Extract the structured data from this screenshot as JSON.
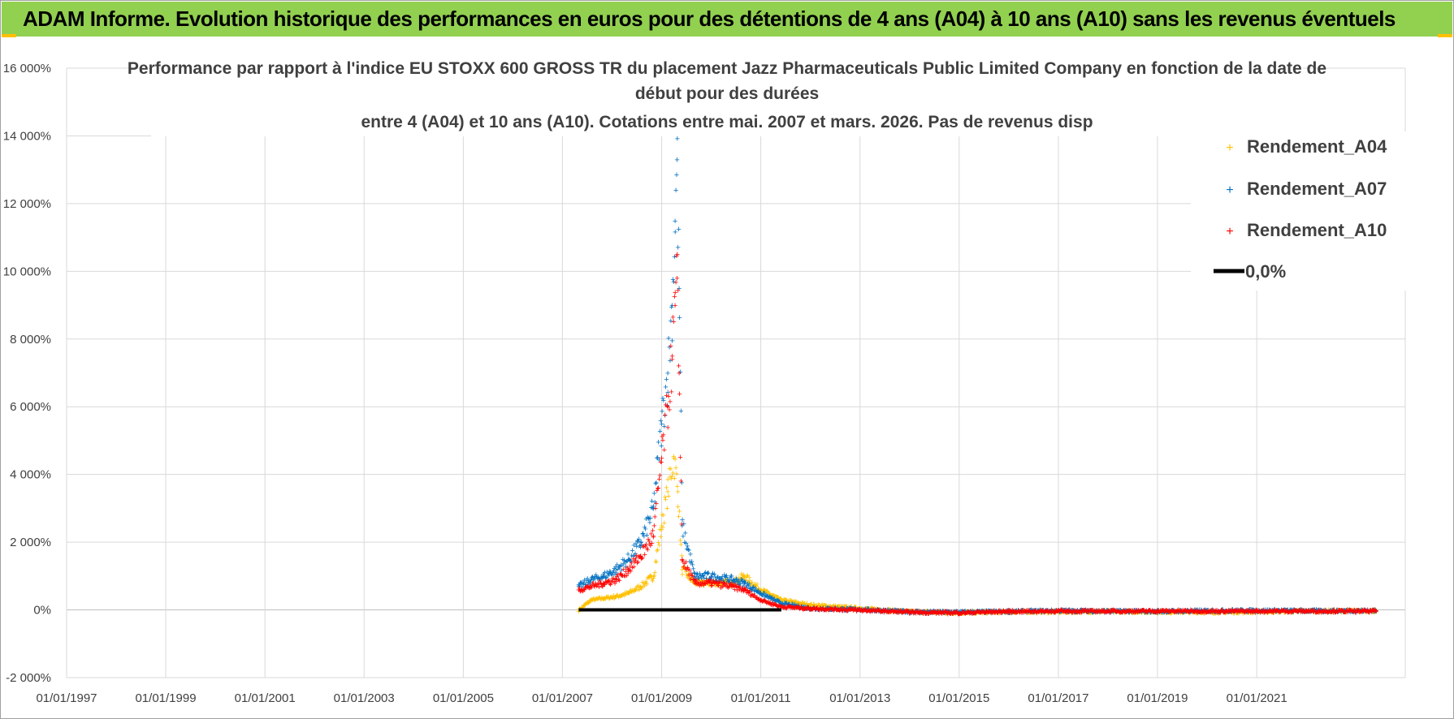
{
  "header": {
    "title": "ADAM Informe. Evolution historique des performances en euros pour des détentions de 4 ans (A04) à 10 ans (A10) sans les revenus éventuels"
  },
  "colors": {
    "banner": "#92d050",
    "a04": "#ffc000",
    "a07": "#0070c0",
    "a10": "#ff0000",
    "zero": "#000000",
    "grid": "#d9d9d9"
  },
  "chart_data": {
    "type": "scatter",
    "title_lines": [
      "Performance par rapport à l'indice EU STOXX 600 GROSS TR  du placement Jazz Pharmaceuticals Public Limited Company en fonction de la date de",
      "début pour des durées",
      "entre 4 (A04) et 10 ans (A10). Cotations entre mai. 2007 et mars. 2026. Pas de revenus disp"
    ],
    "x_range": [
      "1997-01-01",
      "2023-12-31"
    ],
    "x_ticks": [
      "01/01/1997",
      "01/01/1999",
      "01/01/2001",
      "01/01/2003",
      "01/01/2005",
      "01/01/2007",
      "01/01/2009",
      "01/01/2011",
      "01/01/2013",
      "01/01/2015",
      "01/01/2017",
      "01/01/2019",
      "01/01/2021"
    ],
    "ylim": [
      -2000,
      16000
    ],
    "y_ticks": [
      {
        "v": 16000,
        "label": "16 000%"
      },
      {
        "v": 14000,
        "label": "14 000%"
      },
      {
        "v": 12000,
        "label": "12 000%"
      },
      {
        "v": 10000,
        "label": "10 000%"
      },
      {
        "v": 8000,
        "label": "8 000%"
      },
      {
        "v": 6000,
        "label": "6 000%"
      },
      {
        "v": 4000,
        "label": "4 000%"
      },
      {
        "v": 2000,
        "label": "2 000%"
      },
      {
        "v": 0,
        "label": "0%"
      },
      {
        "v": -2000,
        "label": "-2 000%"
      }
    ],
    "grid": true,
    "legend_position": "top-right",
    "series": [
      {
        "name": "Rendement_A04",
        "color": "#ffc000",
        "points": [
          [
            "2007-05-01",
            0
          ],
          [
            "2007-08-01",
            300
          ],
          [
            "2007-11-01",
            350
          ],
          [
            "2008-02-01",
            400
          ],
          [
            "2008-05-01",
            500
          ],
          [
            "2008-08-01",
            700
          ],
          [
            "2008-11-01",
            1000
          ],
          [
            "2009-01-01",
            2500
          ],
          [
            "2009-02-15",
            3500
          ],
          [
            "2009-04-01",
            4500
          ],
          [
            "2009-05-01",
            3500
          ],
          [
            "2009-06-01",
            1200
          ],
          [
            "2009-09-01",
            800
          ],
          [
            "2010-01-01",
            800
          ],
          [
            "2010-06-01",
            800
          ],
          [
            "2010-09-01",
            1000
          ],
          [
            "2011-01-01",
            600
          ],
          [
            "2011-06-01",
            300
          ],
          [
            "2012-01-01",
            150
          ],
          [
            "2013-01-01",
            50
          ],
          [
            "2014-01-01",
            -50
          ],
          [
            "2015-01-01",
            -80
          ],
          [
            "2016-01-01",
            -50
          ],
          [
            "2017-01-01",
            -50
          ],
          [
            "2018-01-01",
            -40
          ],
          [
            "2019-01-01",
            -50
          ],
          [
            "2020-01-01",
            -60
          ],
          [
            "2021-01-01",
            -50
          ],
          [
            "2022-01-01",
            -30
          ],
          [
            "2023-06-01",
            -20
          ]
        ]
      },
      {
        "name": "Rendement_A07",
        "color": "#0070c0",
        "points": [
          [
            "2007-05-01",
            700
          ],
          [
            "2007-08-01",
            900
          ],
          [
            "2007-11-01",
            1000
          ],
          [
            "2008-02-01",
            1200
          ],
          [
            "2008-05-01",
            1500
          ],
          [
            "2008-08-01",
            2000
          ],
          [
            "2008-11-01",
            3000
          ],
          [
            "2009-01-01",
            5500
          ],
          [
            "2009-02-15",
            7000
          ],
          [
            "2009-03-20",
            9000
          ],
          [
            "2009-04-10",
            11500
          ],
          [
            "2009-04-25",
            13300
          ],
          [
            "2009-05-10",
            9500
          ],
          [
            "2009-06-01",
            2500
          ],
          [
            "2009-09-01",
            1000
          ],
          [
            "2010-01-01",
            1000
          ],
          [
            "2010-06-01",
            900
          ],
          [
            "2010-09-01",
            800
          ],
          [
            "2011-01-01",
            500
          ],
          [
            "2011-06-01",
            200
          ],
          [
            "2012-01-01",
            50
          ],
          [
            "2013-01-01",
            20
          ],
          [
            "2014-01-01",
            -50
          ],
          [
            "2015-01-01",
            -60
          ],
          [
            "2016-01-01",
            -40
          ],
          [
            "2017-01-01",
            -20
          ],
          [
            "2018-01-01",
            -30
          ],
          [
            "2019-01-01",
            -40
          ],
          [
            "2020-01-01",
            -20
          ],
          [
            "2021-01-01",
            -10
          ],
          [
            "2022-01-01",
            -20
          ],
          [
            "2023-06-01",
            -20
          ]
        ]
      },
      {
        "name": "Rendement_A10",
        "color": "#ff0000",
        "points": [
          [
            "2007-05-01",
            600
          ],
          [
            "2007-08-01",
            700
          ],
          [
            "2007-11-01",
            800
          ],
          [
            "2008-02-01",
            900
          ],
          [
            "2008-05-01",
            1200
          ],
          [
            "2008-08-01",
            1600
          ],
          [
            "2008-11-01",
            2200
          ],
          [
            "2009-01-01",
            4500
          ],
          [
            "2009-02-15",
            6000
          ],
          [
            "2009-03-20",
            7500
          ],
          [
            "2009-04-10",
            9000
          ],
          [
            "2009-04-25",
            9800
          ],
          [
            "2009-05-10",
            7000
          ],
          [
            "2009-06-01",
            1500
          ],
          [
            "2009-09-01",
            800
          ],
          [
            "2010-01-01",
            800
          ],
          [
            "2010-06-01",
            700
          ],
          [
            "2010-09-01",
            600
          ],
          [
            "2011-01-01",
            300
          ],
          [
            "2011-06-01",
            100
          ],
          [
            "2012-01-01",
            50
          ],
          [
            "2013-01-01",
            0
          ],
          [
            "2014-01-01",
            -60
          ],
          [
            "2015-01-01",
            -80
          ],
          [
            "2016-01-01",
            -40
          ],
          [
            "2017-01-01",
            -30
          ],
          [
            "2018-01-01",
            -30
          ],
          [
            "2019-01-01",
            -30
          ],
          [
            "2020-01-01",
            -30
          ],
          [
            "2021-01-01",
            -30
          ],
          [
            "2022-01-01",
            -30
          ],
          [
            "2023-06-01",
            -30
          ]
        ]
      },
      {
        "name": "0,0%",
        "color": "#000000",
        "line": true,
        "points": [
          [
            "2007-05-01",
            0
          ],
          [
            "2011-06-01",
            0
          ]
        ]
      }
    ]
  }
}
